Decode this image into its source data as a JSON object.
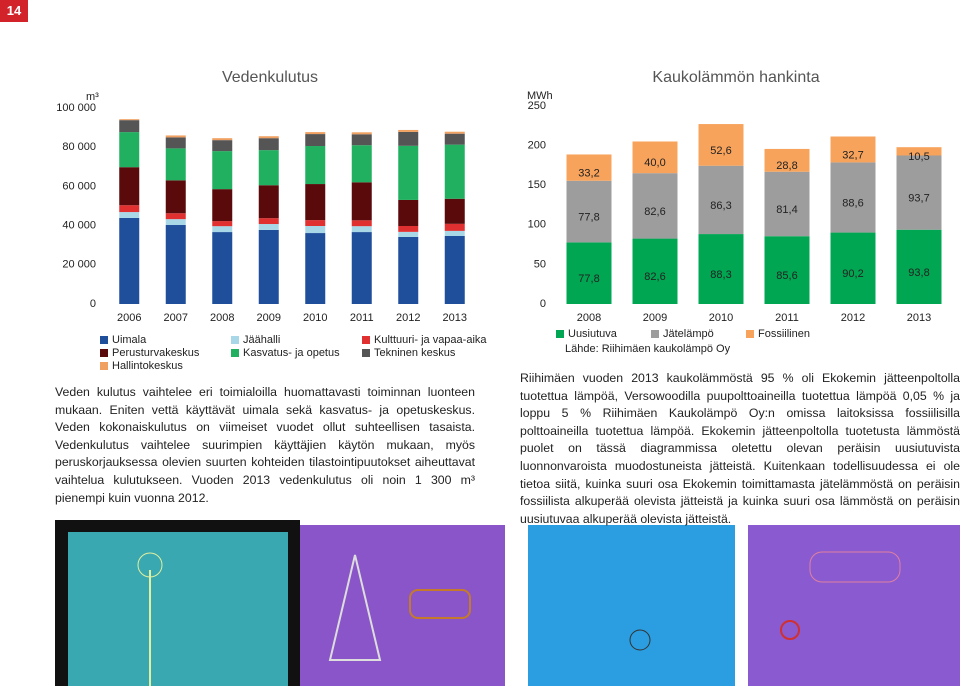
{
  "page_number": "14",
  "chart_data": [
    {
      "type": "stacked_bar",
      "title": "Vedenkulutus",
      "y_unit": "m³",
      "categories": [
        "2006",
        "2007",
        "2008",
        "2009",
        "2010",
        "2011",
        "2012",
        "2013"
      ],
      "ylim": [
        0,
        100000
      ],
      "yticks": [
        0,
        {
          "value": 20000,
          "label": "20 000"
        },
        {
          "value": 40000,
          "label": "40 000"
        },
        {
          "value": 60000,
          "label": "60 000"
        },
        {
          "value": 80000,
          "label": "80 000"
        },
        {
          "value": 100000,
          "label": "100 000"
        }
      ],
      "series": [
        {
          "name": "Uimala",
          "color": "#1f4e9a",
          "values": [
            43900,
            40300,
            36700,
            37800,
            36200,
            36700,
            34200,
            34700
          ]
        },
        {
          "name": "Jäähalli",
          "color": "#a8d8e8",
          "values": [
            3000,
            3000,
            3000,
            3000,
            3600,
            3000,
            2600,
            2600
          ]
        },
        {
          "name": "Kulttuuri- ja vapaa-aika",
          "color": "#e03030",
          "values": [
            3500,
            3000,
            2600,
            3000,
            3000,
            3000,
            3000,
            3600
          ]
        },
        {
          "name": "Perusturvakeskus",
          "color": "#5a0a0a",
          "values": [
            19400,
            16800,
            16300,
            16800,
            18400,
            19400,
            13300,
            12800
          ]
        },
        {
          "name": "Kasvatus- ja opetus",
          "color": "#20b060",
          "values": [
            17900,
            16300,
            19400,
            17900,
            19400,
            18900,
            27600,
            27600
          ]
        },
        {
          "name": "Tekninen keskus",
          "color": "#555555",
          "values": [
            6100,
            5600,
            5600,
            6100,
            6100,
            5600,
            7100,
            5600
          ]
        },
        {
          "name": "Hallintokeskus",
          "color": "#f0a060",
          "values": [
            500,
            1000,
            1000,
            1000,
            1000,
            1000,
            1000,
            1000
          ]
        }
      ]
    },
    {
      "type": "stacked_bar",
      "title": "Kaukolämmön hankinta",
      "y_unit": "MWh",
      "categories": [
        "2008",
        "2009",
        "2010",
        "2011",
        "2012",
        "2013"
      ],
      "ylim": [
        0,
        250
      ],
      "yticks": [
        0,
        50,
        100,
        150,
        200,
        250
      ],
      "source": "Lähde: Riihimäen kaukolämpö Oy",
      "series": [
        {
          "name": "Uusiutuva",
          "color": "#00a651",
          "values": [
            77.8,
            82.6,
            88.3,
            85.6,
            90.2,
            93.8
          ],
          "value_labels": [
            "77,8",
            "82,6",
            "88,3",
            "85,6",
            "90,2",
            "93,8"
          ]
        },
        {
          "name": "Jätelämpö",
          "color": "#9d9d9d",
          "values": [
            77.8,
            82.6,
            86.3,
            81.4,
            88.6,
            93.7
          ],
          "value_labels": [
            "77,8",
            "82,6",
            "86,3",
            "81,4",
            "88,6",
            "93,7"
          ]
        },
        {
          "name": "Fossiilinen",
          "color": "#f7a35c",
          "values": [
            33.2,
            40.0,
            52.6,
            28.8,
            32.7,
            10.5
          ],
          "value_labels": [
            "33,2",
            "40,0",
            "52,6",
            "28,8",
            "32,7",
            "10,5"
          ]
        }
      ]
    }
  ],
  "paragraphs": [
    "Veden kulutus vaihtelee eri toimialoilla huomattavasti toiminnan luonteen mukaan. Eniten vettä käyttävät uimala sekä kasvatus- ja opetuskeskus. Veden kokonaiskulutus on viimeiset vuodet ollut suhteellisen tasaista. Vedenkulutus vaihtelee suurimpien käyttäjien käytön mukaan, myös peruskorjauksessa olevien suurten kohteiden tilastointipuutokset aiheuttavat vaihtelua kulutukseen. Vuoden 2013 vedenkulutus oli noin 1 300 m³ pienempi kuin vuonna 2012.",
    "Riihimäen vuoden 2013 kaukolämmöstä 95 % oli Ekokemin jätteenpoltolla tuotettua lämpöä, Versowoodilla puupolttoaineilla tuotettua lämpöä 0,05 % ja loppu 5 % Riihimäen Kaukolämpö Oy:n omissa laitoksissa fossiilisilla polttoaineilla tuotettua lämpöä. Ekokemin jätteenpoltolla tuotetusta lämmöstä puolet on tässä diagrammissa oletettu olevan peräisin uusiutuvista luonnonvaroista muodostuneista jätteistä. Kuitenkaan todellisuudessa ei ole tietoa siitä, kuinka suuri osa Ekokemin toimittamasta jätelämmöstä on peräisin fossiilista alkuperää olevista jätteistä ja kuinka suuri osa lämmöstä on peräisin uusiutuvaa alkuperää olevista jätteistä."
  ]
}
